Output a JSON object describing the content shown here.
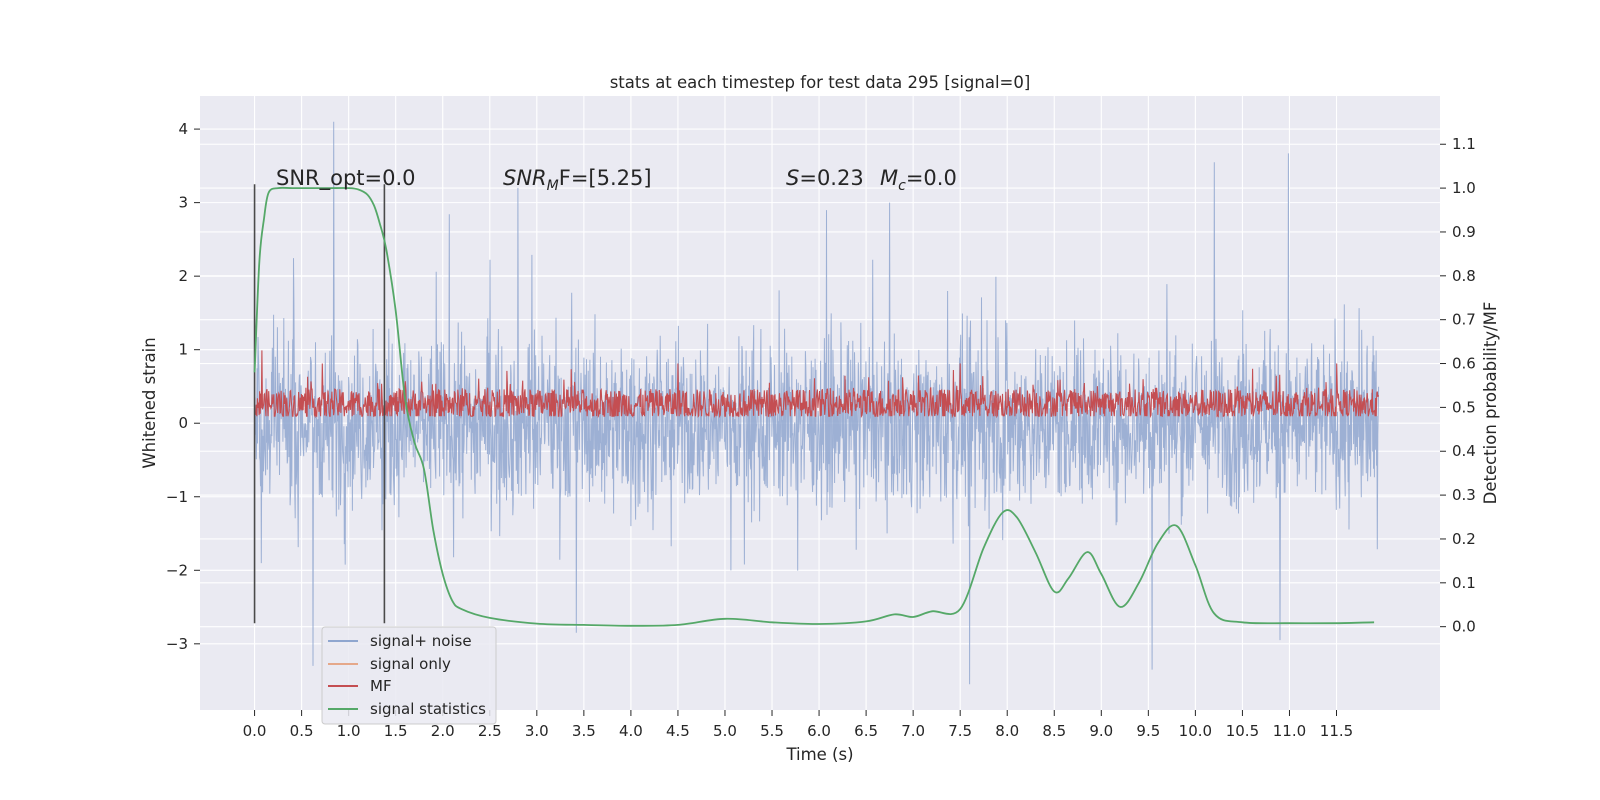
{
  "chart_data": {
    "type": "line",
    "title": "stats at each timestep for test data 295 [signal=0]",
    "xlabel": "Time (s)",
    "ylabel_left": "Whitened strain",
    "ylabel_right": "Detection probability/MF",
    "xlim": [
      -0.58,
      12.6
    ],
    "ylim_left": [
      -3.9,
      4.45
    ],
    "ylim_right": [
      -0.19,
      1.21
    ],
    "x_ticks": [
      "0.0",
      "0.5",
      "1.0",
      "1.5",
      "2.0",
      "2.5",
      "3.0",
      "3.5",
      "4.0",
      "4.5",
      "5.0",
      "5.5",
      "6.0",
      "6.5",
      "7.0",
      "7.5",
      "8.0",
      "8.5",
      "9.0",
      "9.5",
      "10.0",
      "10.5",
      "11.0",
      "11.5"
    ],
    "y_ticks_left": [
      "−3",
      "−2",
      "−1",
      "0",
      "1",
      "2",
      "3",
      "4"
    ],
    "y_ticks_right": [
      "0.0",
      "0.1",
      "0.2",
      "0.3",
      "0.4",
      "0.5",
      "0.6",
      "0.7",
      "0.8",
      "0.9",
      "1.0",
      "1.1"
    ],
    "grid": true,
    "legend_position": "lower-left",
    "vlines": [
      0.0,
      1.38
    ],
    "annotations": {
      "snr_opt": "SNR_opt=0.0",
      "snr_mf_label": "SNR",
      "snr_mf_sub": "M",
      "snr_mf_rest": "F=[5.25]",
      "s_label": "S",
      "s_value": "=0.23",
      "mc_label": "M",
      "mc_sub": "c",
      "mc_value": "=0.0"
    },
    "series": [
      {
        "name": "signal+ noise",
        "color": "#8fa6cf",
        "axis": "left",
        "time_range": [
          0.0,
          11.95
        ],
        "typical_abs_max": 1.5,
        "extreme_peaks": [
          [
            0.84,
            4.1
          ],
          [
            0.62,
            -3.3
          ],
          [
            2.8,
            3.2
          ],
          [
            3.42,
            -2.85
          ],
          [
            10.99,
            3.67
          ],
          [
            10.2,
            3.55
          ],
          [
            7.6,
            -3.55
          ],
          [
            9.54,
            -3.35
          ],
          [
            10.9,
            -2.95
          ]
        ]
      },
      {
        "name": "signal only",
        "color": "#e5a88a",
        "axis": "left",
        "values": []
      },
      {
        "name": "MF",
        "color": "#c44e52",
        "axis": "right",
        "time_range": [
          0.0,
          11.95
        ],
        "baseline": 0.5,
        "band": [
          0.48,
          0.57
        ],
        "peaks": [
          [
            0.08,
            0.63
          ],
          [
            0.72,
            0.6
          ],
          [
            4.5,
            0.6
          ],
          [
            7.5,
            0.6
          ],
          [
            11.5,
            0.6
          ]
        ]
      },
      {
        "name": "signal statistics",
        "color": "#55a868",
        "axis": "right",
        "x": [
          0.0,
          0.05,
          0.1,
          0.15,
          0.25,
          0.4,
          0.6,
          0.8,
          1.0,
          1.1,
          1.2,
          1.27,
          1.33,
          1.4,
          1.5,
          1.6,
          1.7,
          1.8,
          1.9,
          2.0,
          2.1,
          2.2,
          2.5,
          3.0,
          3.5,
          4.0,
          4.5,
          5.0,
          5.5,
          6.0,
          6.5,
          6.8,
          7.0,
          7.2,
          7.5,
          7.75,
          7.95,
          8.1,
          8.3,
          8.5,
          8.65,
          8.85,
          9.0,
          9.2,
          9.4,
          9.6,
          9.8,
          10.0,
          10.2,
          10.5,
          11.0,
          11.5,
          11.9
        ],
        "y": [
          0.58,
          0.83,
          0.93,
          0.99,
          1.0,
          1.0,
          1.0,
          1.0,
          1.0,
          0.997,
          0.985,
          0.96,
          0.92,
          0.86,
          0.72,
          0.52,
          0.42,
          0.36,
          0.22,
          0.12,
          0.06,
          0.04,
          0.02,
          0.007,
          0.004,
          0.002,
          0.004,
          0.018,
          0.01,
          0.006,
          0.012,
          0.028,
          0.022,
          0.035,
          0.04,
          0.18,
          0.26,
          0.25,
          0.17,
          0.08,
          0.11,
          0.17,
          0.12,
          0.045,
          0.1,
          0.19,
          0.23,
          0.14,
          0.03,
          0.01,
          0.008,
          0.008,
          0.01
        ]
      }
    ]
  }
}
